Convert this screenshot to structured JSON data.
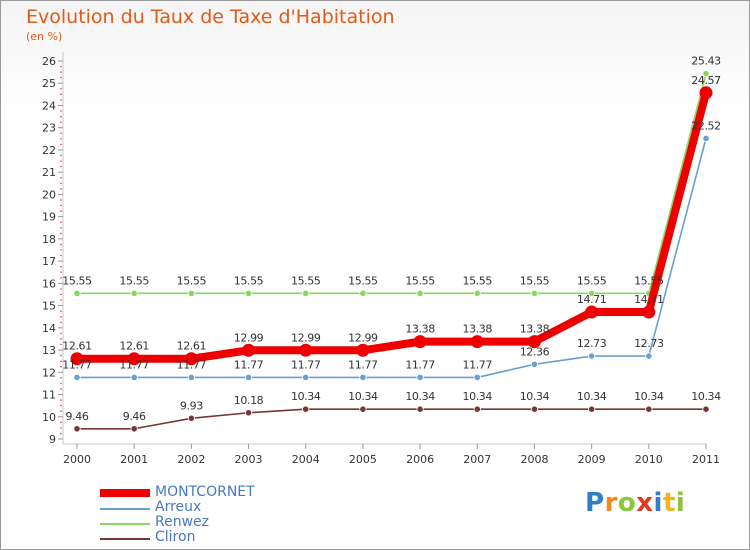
{
  "chart_data": {
    "type": "line",
    "title": "Evolution du Taux de Taxe d'Habitation",
    "subtitle": "(en %)",
    "xlabel": "",
    "ylabel": "",
    "x": [
      "2000",
      "2001",
      "2002",
      "2003",
      "2004",
      "2005",
      "2006",
      "2007",
      "2008",
      "2009",
      "2010",
      "2011"
    ],
    "ylim": [
      9,
      26
    ],
    "yticks": [
      9,
      10,
      11,
      12,
      13,
      14,
      15,
      16,
      17,
      18,
      19,
      20,
      21,
      22,
      23,
      24,
      25,
      26
    ],
    "grid": false,
    "legend_position": "bottom-left",
    "series": [
      {
        "name": "MONTCORNET",
        "color": "#ee0000",
        "values": [
          12.61,
          12.61,
          12.61,
          12.99,
          12.99,
          12.99,
          13.38,
          13.38,
          13.38,
          14.71,
          14.71,
          24.57
        ],
        "labels": [
          "12.61",
          "12.61",
          "12.61",
          "12.99",
          "12.99",
          "12.99",
          "13.38",
          "13.38",
          "13.38",
          "14.71",
          "14.71",
          "24.57"
        ]
      },
      {
        "name": "Arreux",
        "color": "#6aa0cf",
        "values": [
          11.77,
          11.77,
          11.77,
          11.77,
          11.77,
          11.77,
          11.77,
          11.77,
          12.36,
          12.73,
          12.73,
          22.52
        ],
        "labels": [
          "11.77",
          "11.77",
          "11.77",
          "11.77",
          "11.77",
          "11.77",
          "11.77",
          "11.77",
          "12.36",
          "12.73",
          "12.73",
          "22.52"
        ]
      },
      {
        "name": "Renwez",
        "color": "#88d860",
        "values": [
          15.55,
          15.55,
          15.55,
          15.55,
          15.55,
          15.55,
          15.55,
          15.55,
          15.55,
          15.55,
          15.55,
          25.43
        ],
        "labels": [
          "15.55",
          "15.55",
          "15.55",
          "15.55",
          "15.55",
          "15.55",
          "15.55",
          "15.55",
          "15.55",
          "15.55",
          "15.55",
          "25.43"
        ]
      },
      {
        "name": "Cliron",
        "color": "#7a3535",
        "values": [
          9.46,
          9.46,
          9.93,
          10.18,
          10.34,
          10.34,
          10.34,
          10.34,
          10.34,
          10.34,
          10.34,
          10.34
        ],
        "labels": [
          "9.46",
          "9.46",
          "9.93",
          "10.18",
          "10.34",
          "10.34",
          "10.34",
          "10.34",
          "10.34",
          "10.34",
          "10.34",
          "10.34"
        ]
      }
    ]
  },
  "legend": {
    "items": [
      {
        "label": "MONTCORNET",
        "color": "#ee0000"
      },
      {
        "label": "Arreux",
        "color": "#6aa0cf"
      },
      {
        "label": "Renwez",
        "color": "#88d860"
      },
      {
        "label": "Cliron",
        "color": "#7a3535"
      }
    ]
  },
  "logo": {
    "text": "Proxiti",
    "letters": [
      {
        "ch": "P",
        "color": "#2c7fc8"
      },
      {
        "ch": "r",
        "color": "#f08a1c"
      },
      {
        "ch": "o",
        "color": "#8cc43c"
      },
      {
        "ch": "x",
        "color": "#e23a1c"
      },
      {
        "ch": "i",
        "color": "#2c7fc8"
      },
      {
        "ch": "t",
        "color": "#f0b41c"
      },
      {
        "ch": "i",
        "color": "#8cc43c"
      }
    ]
  }
}
